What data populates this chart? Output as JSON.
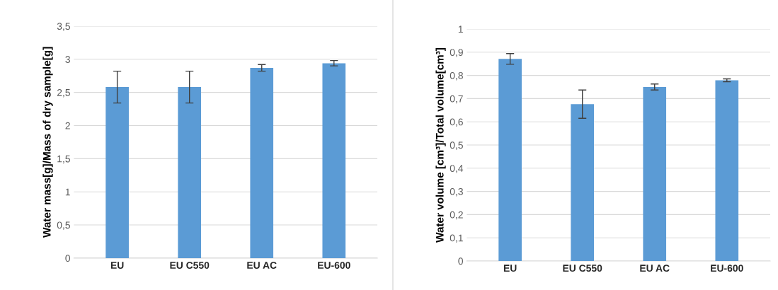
{
  "chart_data": [
    {
      "type": "bar",
      "categories": [
        "EU",
        "EU C550",
        "EU AC",
        "EU-600"
      ],
      "ylabel": "Water mass[g]/Mass of dry sample[g]",
      "values": [
        2.58,
        2.58,
        2.87,
        2.94
      ],
      "errors": [
        0.24,
        0.24,
        0.05,
        0.04
      ],
      "color": "#5b9bd5",
      "grid": "y",
      "legend": false,
      "ylim": [
        0,
        3.5
      ],
      "yticks": [
        0,
        {
          "value": 0.5,
          "label": "0,5"
        },
        1,
        {
          "value": 1.5,
          "label": "1,5"
        },
        2,
        {
          "value": 2.5,
          "label": "2,5"
        },
        3,
        {
          "value": 3.5,
          "label": "3,5"
        }
      ]
    },
    {
      "type": "bar",
      "categories": [
        "EU",
        "EU C550",
        "EU AC",
        "EU-600"
      ],
      "ylabel": "Water volume [cm³]/Total volume[cm³]",
      "values": [
        0.871,
        0.676,
        0.75,
        0.779
      ],
      "errors": [
        0.023,
        0.061,
        0.013,
        0.006
      ],
      "color": "#5b9bd5",
      "grid": "y",
      "legend": false,
      "ylim": [
        0,
        1
      ],
      "yticks": [
        0,
        {
          "value": 0.1,
          "label": "0,1"
        },
        {
          "value": 0.2,
          "label": "0,2"
        },
        {
          "value": 0.3,
          "label": "0,3"
        },
        {
          "value": 0.4,
          "label": "0,4"
        },
        {
          "value": 0.5,
          "label": "0,5"
        },
        {
          "value": 0.6,
          "label": "0,6"
        },
        {
          "value": 0.7,
          "label": "0,7"
        },
        {
          "value": 0.8,
          "label": "0,8"
        },
        {
          "value": 0.9,
          "label": "0,9"
        },
        1
      ]
    }
  ]
}
